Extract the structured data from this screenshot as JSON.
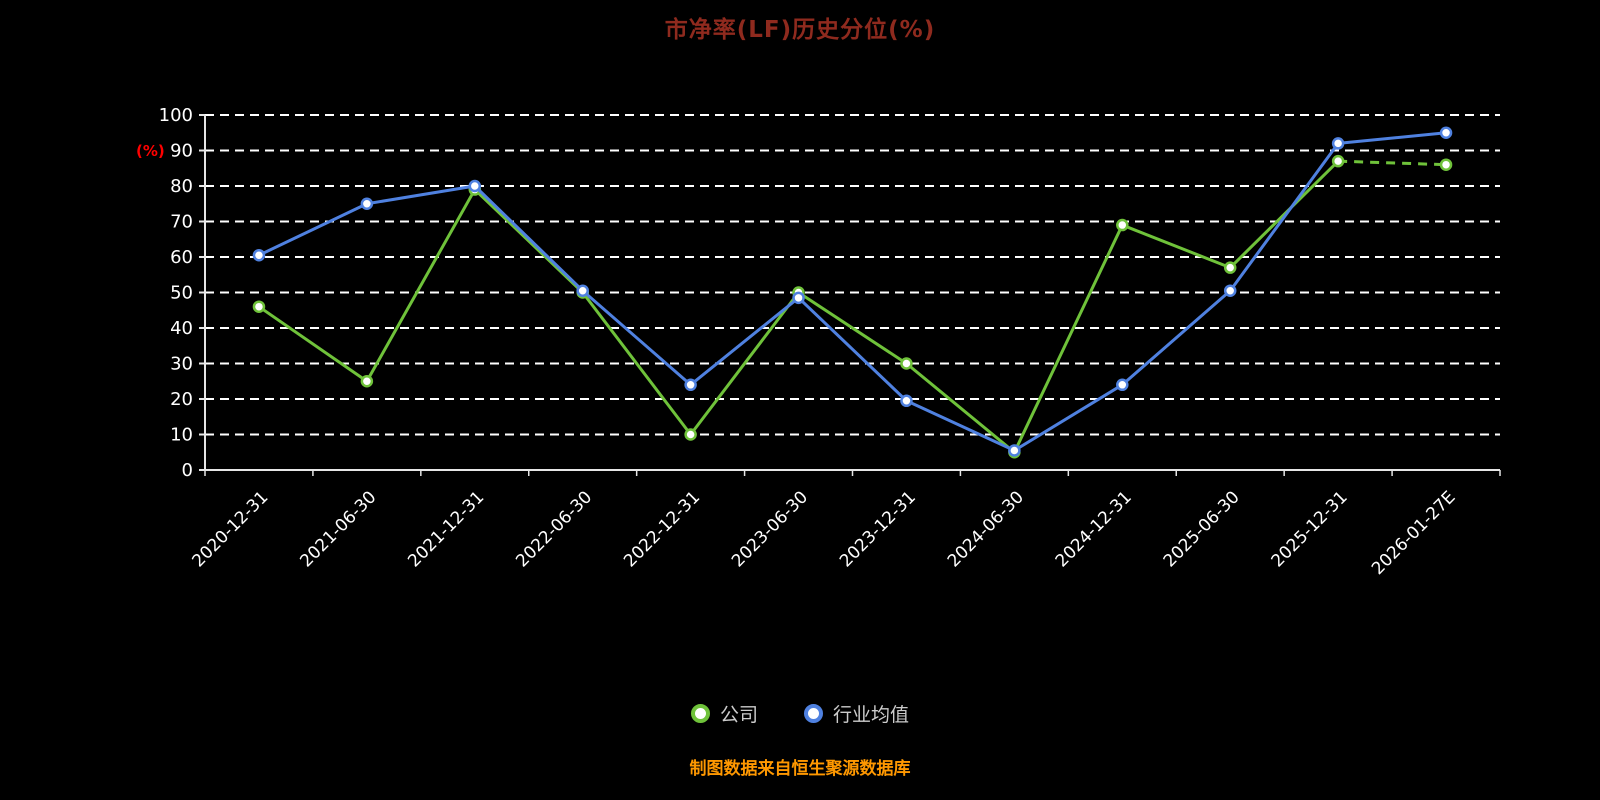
{
  "title": "市净率(LF)历史分位(%)",
  "caption": "制图数据来自恒生聚源数据库",
  "chart_data": {
    "type": "line",
    "title": "市净率(LF)历史分位(%)",
    "xlabel": "",
    "ylabel": "(%)",
    "ylim": [
      0,
      100
    ],
    "ytick_step": 10,
    "grid": true,
    "grid_style": "dashed-white",
    "legend_position": "bottom",
    "background": "#000000",
    "categories": [
      "2020-12-31",
      "2021-06-30",
      "2021-12-31",
      "2022-06-30",
      "2022-12-31",
      "2023-06-30",
      "2023-12-31",
      "2024-06-30",
      "2024-12-31",
      "2025-06-30",
      "2025-12-31",
      "2026-01-27E"
    ],
    "series": [
      {
        "name": "公司",
        "color": "#6fc23a",
        "values": [
          46,
          25,
          79,
          50,
          10,
          50,
          30,
          5,
          69,
          57,
          87,
          86
        ],
        "last_segment_dashed": true
      },
      {
        "name": "行业均值",
        "color": "#4f81e0",
        "values": [
          60.5,
          75,
          80,
          50.5,
          24,
          48.5,
          19.5,
          5.5,
          24,
          50.5,
          92,
          95
        ],
        "last_segment_dashed": false
      }
    ],
    "colors": {
      "grid": "#ffffff",
      "axis": "#e6e6e6",
      "tick_label": "#ffffff",
      "title": "#8f2a1e",
      "caption": "#ff9800",
      "ylabel": "#ff0000",
      "legend_text": "#cccccc",
      "marker_fill": "#ffffff"
    }
  }
}
